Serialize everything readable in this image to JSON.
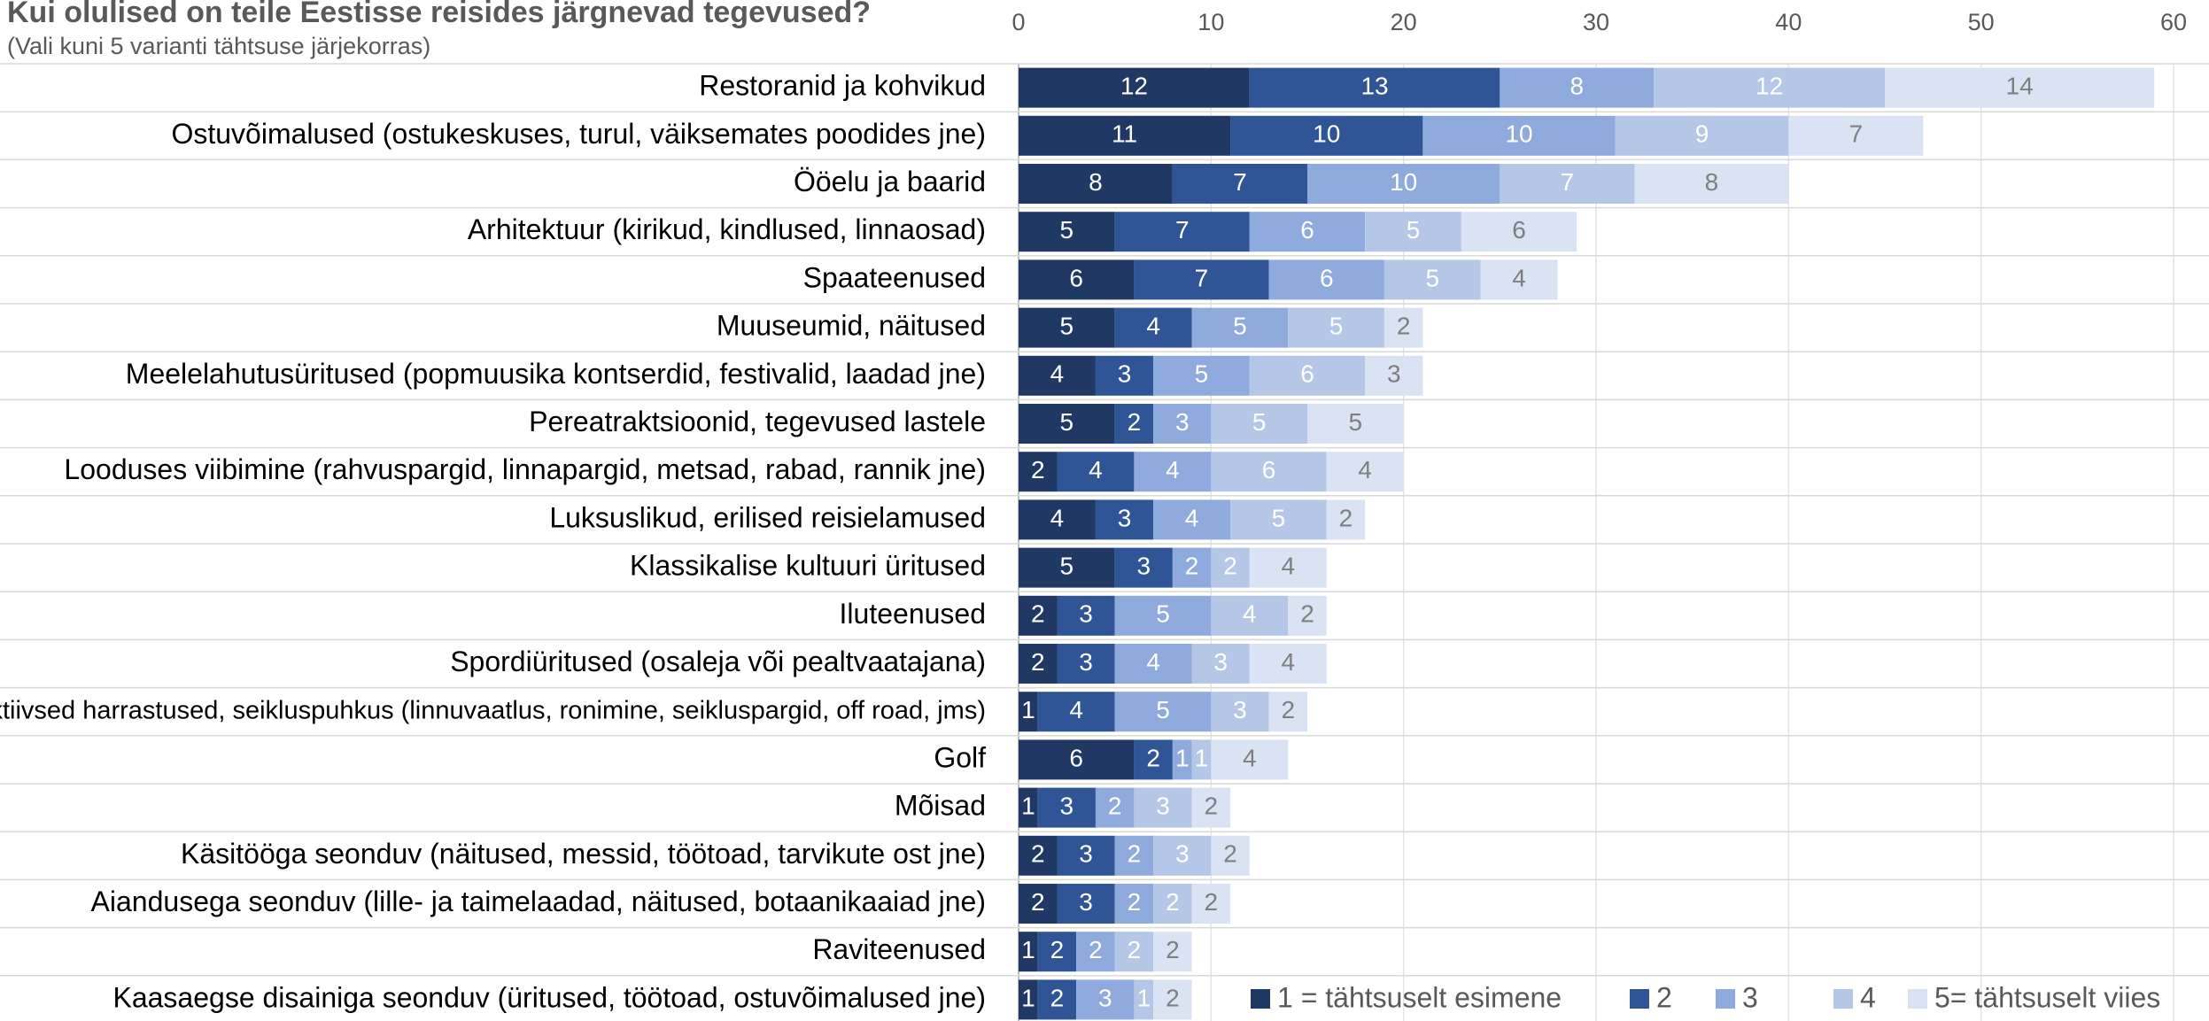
{
  "chart_data": {
    "type": "stacked_barh",
    "title": "Kui olulised on teile Eestisse reisides järgnevad tegevused?",
    "subtitle": "(Vali kuni 5 varianti tähtsuse järjekorras)",
    "categories": [
      "Restoranid ja kohvikud",
      "Ostuvõimalused (ostukeskuses, turul, väiksemates poodides jne)",
      "Ööelu ja baarid",
      "Arhitektuur (kirikud, kindlused, linnaosad)",
      "Spaateenused",
      "Muuseumid, näitused",
      "Meelelahutusüritused (popmuusika kontserdid, festivalid, laadad jne)",
      "Pereatraktsioonid, tegevused lastele",
      "Looduses viibimine (rahvuspargid, linnapargid, metsad, rabad, rannik jne)",
      "Luksuslikud, erilised reisielamused",
      "Klassikalise kultuuri üritused",
      "Iluteenused",
      "Spordiüritused (osaleja või pealtvaatajana)",
      "Aktiivsed harrastused, seikluspuhkus (linnuvaatlus, ronimine, seikluspargid,  off road, jms)",
      "Golf",
      "Mõisad",
      "Käsitööga seonduv (näitused, messid, töötoad, tarvikute ost jne)",
      "Aiandusega seonduv (lille- ja taimelaadad, näitused, botaanikaaiad jne)",
      "Raviteenused",
      "Kaasaegse disainiga seonduv (üritused, töötoad, ostuvõimalused jne)"
    ],
    "series": [
      {
        "name": "1 = tähtsuselt esimene",
        "color": "#1f3864",
        "values": [
          12,
          11,
          8,
          5,
          6,
          5,
          4,
          5,
          2,
          4,
          5,
          2,
          2,
          1,
          6,
          1,
          2,
          2,
          1,
          1
        ]
      },
      {
        "name": "2",
        "color": "#2f5597",
        "values": [
          13,
          10,
          7,
          7,
          7,
          4,
          3,
          2,
          4,
          3,
          3,
          3,
          3,
          4,
          2,
          3,
          3,
          3,
          2,
          2
        ]
      },
      {
        "name": "3",
        "color": "#8faadc",
        "values": [
          8,
          10,
          10,
          6,
          6,
          5,
          5,
          3,
          4,
          4,
          2,
          5,
          4,
          5,
          1,
          2,
          2,
          2,
          2,
          3
        ]
      },
      {
        "name": "4",
        "color": "#b4c7e7",
        "values": [
          12,
          9,
          7,
          5,
          5,
          5,
          6,
          5,
          6,
          5,
          2,
          4,
          3,
          3,
          1,
          3,
          3,
          2,
          2,
          1
        ]
      },
      {
        "name": "5= tähtsuselt viies",
        "color": "#dae3f3",
        "values": [
          14,
          7,
          8,
          6,
          4,
          2,
          3,
          5,
          4,
          2,
          4,
          2,
          4,
          2,
          4,
          2,
          2,
          2,
          2,
          2
        ]
      }
    ],
    "xlim": [
      0,
      60
    ],
    "xticks": [
      0,
      10,
      20,
      30,
      40,
      50,
      60
    ],
    "grid": true,
    "legend": "bottom-right"
  }
}
